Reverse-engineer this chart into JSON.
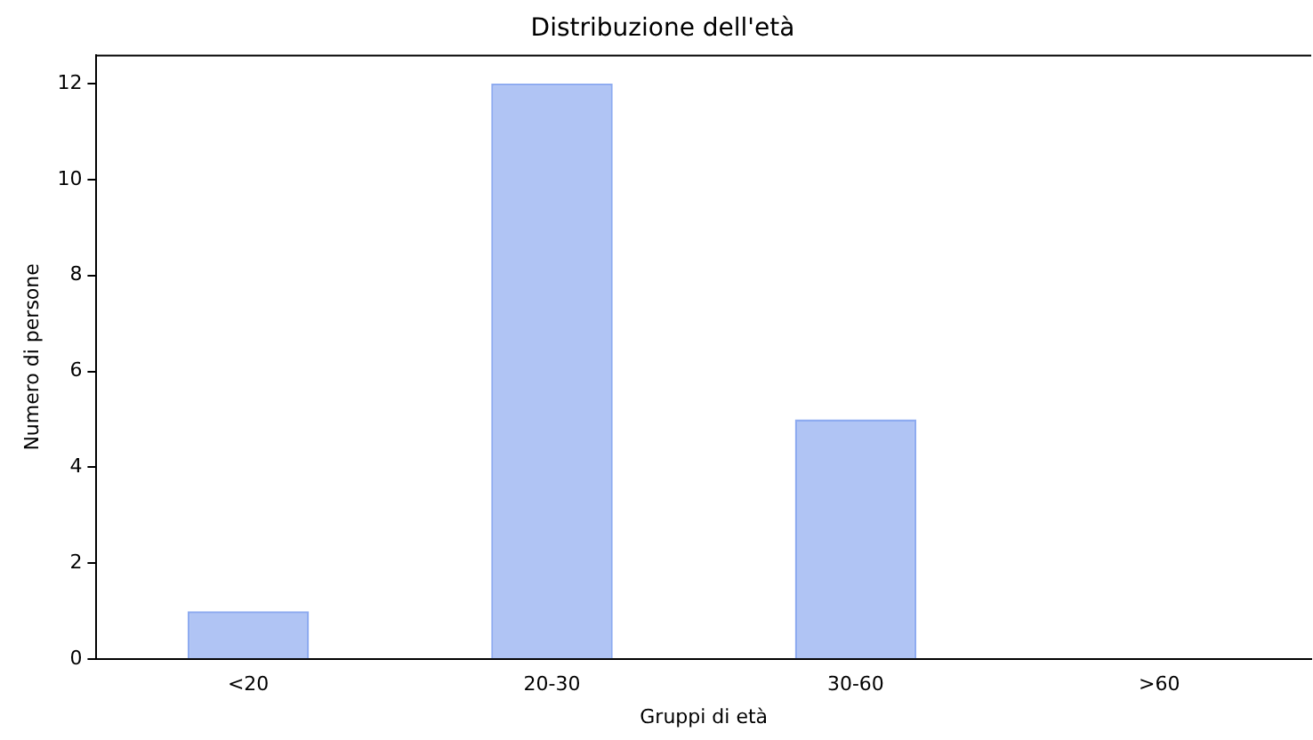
{
  "chart_data": {
    "type": "bar",
    "title": "Distribuzione dell'età",
    "xlabel": "Gruppi di età",
    "ylabel": "Numero di persone",
    "categories": [
      "<20",
      "20-30",
      "30-60",
      ">60"
    ],
    "values": [
      1,
      12,
      5,
      0
    ],
    "color": "#8eabf0",
    "ylim": [
      0,
      12.6
    ],
    "yticks": [
      0,
      2,
      4,
      6,
      8,
      10,
      12
    ],
    "grid": false,
    "legend": false
  }
}
